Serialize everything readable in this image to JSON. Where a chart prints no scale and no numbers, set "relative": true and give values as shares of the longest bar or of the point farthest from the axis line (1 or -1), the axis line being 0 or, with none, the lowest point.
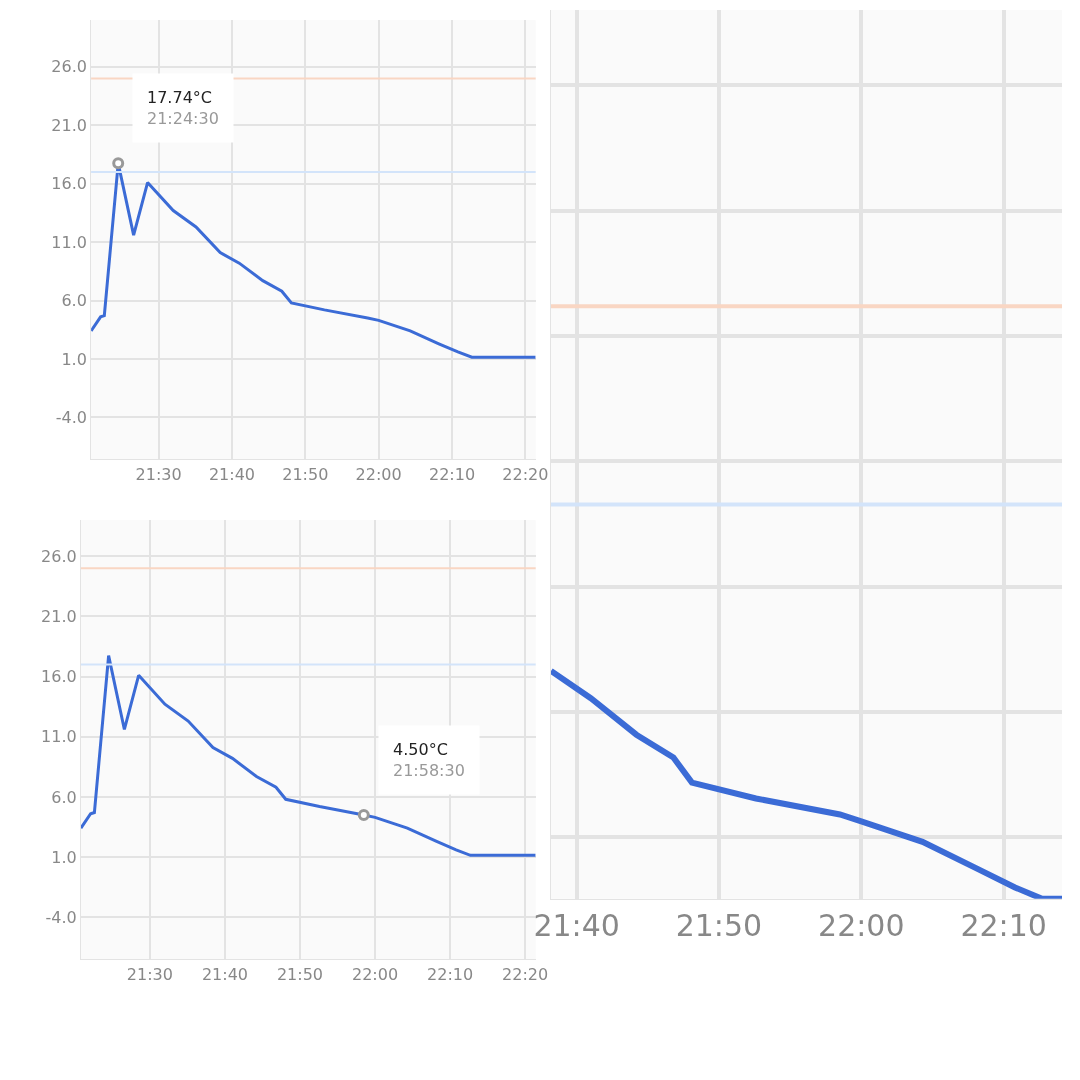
{
  "chart_data": [
    {
      "type": "line",
      "x": [
        21.3467,
        21.3683,
        21.3767,
        21.4083,
        21.4433,
        21.475,
        21.5333,
        21.585,
        21.64,
        21.6833,
        21.7367,
        21.78,
        21.8017,
        21.8767,
        21.975,
        22.0,
        22.0717,
        22.1367,
        22.18,
        22.2117,
        22.3567
      ],
      "series": [
        {
          "color": "#3b6bd6",
          "values": [
            3.4,
            4.6,
            4.7,
            17.74,
            11.6,
            16.1,
            13.7,
            12.3,
            10.1,
            9.2,
            7.7,
            6.8,
            5.8,
            5.2,
            4.5,
            4.3,
            3.4,
            2.3,
            1.6,
            1.15,
            1.15
          ]
        }
      ],
      "xlim": [
        21.3467,
        22.3567
      ],
      "ylim": [
        -7.6,
        30
      ],
      "xticks": [
        {
          "value": 21.5,
          "label": "21:30"
        },
        {
          "value": 21.6667,
          "label": "21:40"
        },
        {
          "value": 21.8333,
          "label": "21:50"
        },
        {
          "value": 22.0,
          "label": "22:00"
        },
        {
          "value": 22.1667,
          "label": "22:10"
        },
        {
          "value": 22.3333,
          "label": "22:20"
        }
      ],
      "yticks": [
        {
          "value": -4,
          "label": "-4.0"
        },
        {
          "value": 1,
          "label": "1.0"
        },
        {
          "value": 6,
          "label": "6.0"
        },
        {
          "value": 11,
          "label": "11.0"
        },
        {
          "value": 16,
          "label": "16.0"
        },
        {
          "value": 21,
          "label": "21.0"
        },
        {
          "value": 26,
          "label": "26.0"
        }
      ],
      "ref_lines": [
        {
          "axis": "y",
          "value": 25,
          "color": "#f9d6c3"
        },
        {
          "axis": "y",
          "value": 17,
          "color": "#d3e4fa"
        }
      ],
      "annotations": [
        {
          "text": "17.74°C\n21:24:30",
          "x": 21.4083,
          "y": 17.74
        }
      ],
      "grid": true,
      "line_style": "solid"
    },
    {
      "type": "line",
      "x": [
        21.3467,
        21.3683,
        21.3767,
        21.4083,
        21.4433,
        21.475,
        21.5333,
        21.585,
        21.64,
        21.6833,
        21.7367,
        21.78,
        21.8017,
        21.8767,
        21.975,
        22.0,
        22.0717,
        22.1367,
        22.18,
        22.2117,
        22.3567
      ],
      "series": [
        {
          "color": "#3b6bd6",
          "values": [
            3.4,
            4.6,
            4.7,
            17.74,
            11.6,
            16.1,
            13.7,
            12.3,
            10.1,
            9.2,
            7.7,
            6.8,
            5.8,
            5.2,
            4.5,
            4.3,
            3.4,
            2.3,
            1.6,
            1.15,
            1.15
          ]
        }
      ],
      "xlim": [
        21.3467,
        22.3567
      ],
      "ylim": [
        -7.5,
        29
      ],
      "xticks": [
        {
          "value": 21.5,
          "label": "21:30"
        },
        {
          "value": 21.6667,
          "label": "21:40"
        },
        {
          "value": 21.8333,
          "label": "21:50"
        },
        {
          "value": 22.0,
          "label": "22:00"
        },
        {
          "value": 22.1667,
          "label": "22:10"
        },
        {
          "value": 22.3333,
          "label": "22:20"
        }
      ],
      "yticks": [
        {
          "value": -4,
          "label": "-4.0"
        },
        {
          "value": 1,
          "label": "1.0"
        },
        {
          "value": 6,
          "label": "6.0"
        },
        {
          "value": 11,
          "label": "11.0"
        },
        {
          "value": 16,
          "label": "16.0"
        },
        {
          "value": 21,
          "label": "21.0"
        },
        {
          "value": 26,
          "label": "26.0"
        }
      ],
      "ref_lines": [
        {
          "axis": "y",
          "value": 25,
          "color": "#f9d6c3"
        },
        {
          "axis": "y",
          "value": 17,
          "color": "#d3e4fa"
        }
      ],
      "annotations": [
        {
          "text": "4.50°C\n21:58:30",
          "x": 21.975,
          "y": 4.5
        }
      ],
      "grid": true,
      "line_style": "solid"
    },
    {
      "type": "line",
      "x": [
        21.6367,
        21.6833,
        21.7367,
        21.78,
        21.8017,
        21.8767,
        21.975,
        22.0,
        22.0717,
        22.1367,
        22.18,
        22.2117,
        22.235
      ],
      "series": [
        {
          "color": "#3b6bd6",
          "values": [
            1,
            0.88,
            0.72,
            0.62,
            0.51,
            0.44,
            0.37,
            0.34,
            0.25,
            0.13,
            0.05,
            0,
            0
          ]
        }
      ],
      "relative": true,
      "xlim": [
        21.6367,
        22.235
      ],
      "xticks": [
        {
          "value": 21.6667,
          "label": "21:40"
        },
        {
          "value": 21.8333,
          "label": "21:50"
        },
        {
          "value": 22.0,
          "label": "22:00"
        },
        {
          "value": 22.1667,
          "label": "22:10"
        }
      ],
      "ref_lines": [
        {
          "axis": "y",
          "value": 2.6,
          "color": "#f9d6c3"
        },
        {
          "axis": "y",
          "value": 1.73,
          "color": "#d3e4fa"
        }
      ],
      "grid": true,
      "tick_labels": "x",
      "line_style": "solid"
    }
  ]
}
